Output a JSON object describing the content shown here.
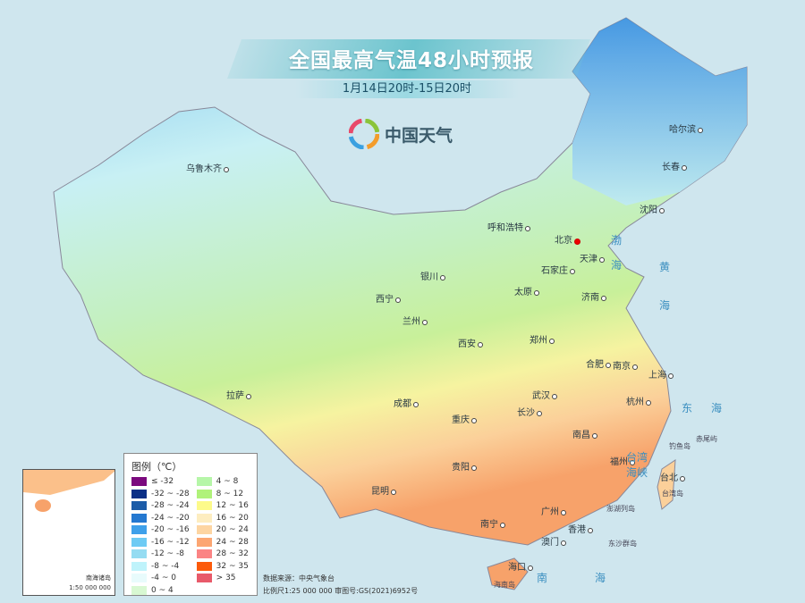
{
  "header": {
    "title": "全国最高气温48小时预报",
    "subtitle": "1月14日20时-15日20时",
    "logo_text": "中国天气",
    "logo_icon": "china-weather-swirl-icon"
  },
  "cities": [
    {
      "name": "乌鲁木齐"
    },
    {
      "name": "哈尔滨"
    },
    {
      "name": "长春"
    },
    {
      "name": "沈阳"
    },
    {
      "name": "呼和浩特"
    },
    {
      "name": "北京",
      "capital": true
    },
    {
      "name": "天津"
    },
    {
      "name": "石家庄"
    },
    {
      "name": "银川"
    },
    {
      "name": "太原"
    },
    {
      "name": "济南"
    },
    {
      "name": "西宁"
    },
    {
      "name": "兰州"
    },
    {
      "name": "西安"
    },
    {
      "name": "郑州"
    },
    {
      "name": "合肥"
    },
    {
      "name": "南京"
    },
    {
      "name": "上海"
    },
    {
      "name": "拉萨"
    },
    {
      "name": "成都"
    },
    {
      "name": "武汉"
    },
    {
      "name": "杭州"
    },
    {
      "name": "重庆"
    },
    {
      "name": "长沙"
    },
    {
      "name": "南昌"
    },
    {
      "name": "贵阳"
    },
    {
      "name": "福州"
    },
    {
      "name": "台北"
    },
    {
      "name": "昆明"
    },
    {
      "name": "南宁"
    },
    {
      "name": "广州"
    },
    {
      "name": "香港"
    },
    {
      "name": "澳门"
    },
    {
      "name": "海口"
    }
  ],
  "seas": [
    "渤",
    "海",
    "黄",
    "海",
    "东",
    "海",
    "台湾",
    "海峡",
    "南",
    "海"
  ],
  "islands": [
    "台湾岛",
    "海南岛",
    "钓鱼岛",
    "赤尾屿",
    "澎湖列岛",
    "东沙群岛"
  ],
  "legend": {
    "title": "图例（℃）",
    "items": [
      {
        "label": "≤ -32",
        "color": "#7b0a7e"
      },
      {
        "label": "-32 ~ -28",
        "color": "#0b2f86"
      },
      {
        "label": "-28 ~ -24",
        "color": "#1c5ca8"
      },
      {
        "label": "-24 ~ -20",
        "color": "#2478d0"
      },
      {
        "label": "-20 ~ -16",
        "color": "#3ea0ea"
      },
      {
        "label": "-16 ~ -12",
        "color": "#6ecbf4"
      },
      {
        "label": "-12 ~ -8",
        "color": "#95dcf2"
      },
      {
        "label": "-8 ~ -4",
        "color": "#bff3fb"
      },
      {
        "label": "-4 ~ 0",
        "color": "#e8fbfc"
      },
      {
        "label": "0 ~ 4",
        "color": "#d8f8d2"
      },
      {
        "label": "4 ~ 8",
        "color": "#b6f6a8"
      },
      {
        "label": "8 ~ 12",
        "color": "#b0f27a"
      },
      {
        "label": "12 ~ 16",
        "color": "#fdfa8a"
      },
      {
        "label": "16 ~ 20",
        "color": "#fdedc0"
      },
      {
        "label": "20 ~ 24",
        "color": "#fdd5a2"
      },
      {
        "label": "24 ~ 28",
        "color": "#fca672"
      },
      {
        "label": "28 ~ 32",
        "color": "#fb8484"
      },
      {
        "label": "32 ~ 35",
        "color": "#fc5a0a"
      },
      {
        "label": "> 35",
        "color": "#e85a6a"
      }
    ]
  },
  "source": {
    "line1": "数据来源：中央气象台",
    "line2": "比例尺1:25 000 000   审图号:GS(2021)6952号"
  },
  "inset": {
    "label": "南海诸岛",
    "scale": "1:50 000 000"
  }
}
